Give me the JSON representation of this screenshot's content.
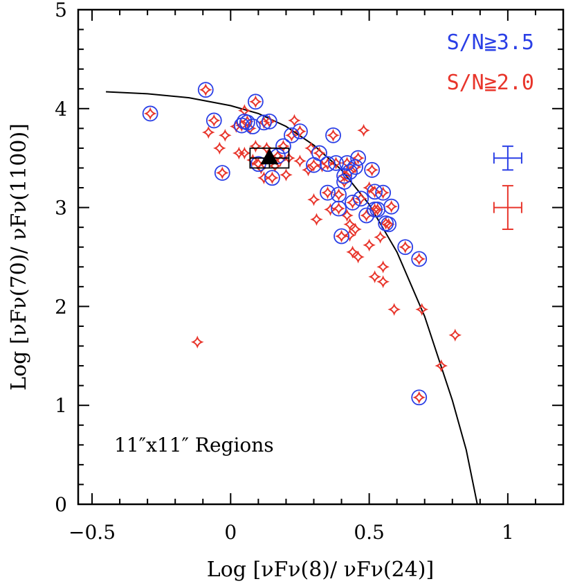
{
  "chart_data": {
    "type": "scatter",
    "title": "",
    "xlabel": "Log [νFν(8)/ νFν(24)]",
    "ylabel": "Log [νFν(70)/ νFν(1100)]",
    "xlim": [
      -0.55,
      1.2
    ],
    "ylim": [
      0,
      5
    ],
    "x_ticks": [
      -0.5,
      0,
      0.5,
      1
    ],
    "x_tick_labels": [
      "−0.5",
      "0",
      "0.5",
      "1"
    ],
    "y_ticks": [
      0,
      1,
      2,
      3,
      4,
      5
    ],
    "y_tick_labels": [
      "0",
      "1",
      "2",
      "3",
      "4",
      "5"
    ],
    "annotation": "11″x11″ Regions",
    "legend_position": "top-right",
    "series": [
      {
        "name": "S/N≧3.5",
        "color": "#2a3fe6",
        "marker": "open-circle",
        "points": [
          [
            -0.29,
            3.95
          ],
          [
            -0.09,
            4.19
          ],
          [
            -0.06,
            3.88
          ],
          [
            -0.03,
            3.35
          ],
          [
            0.04,
            3.83
          ],
          [
            0.05,
            3.87
          ],
          [
            0.06,
            3.86
          ],
          [
            0.08,
            3.82
          ],
          [
            0.09,
            4.07
          ],
          [
            0.1,
            3.44
          ],
          [
            0.12,
            3.86
          ],
          [
            0.14,
            3.87
          ],
          [
            0.15,
            3.3
          ],
          [
            0.17,
            3.52
          ],
          [
            0.19,
            3.62
          ],
          [
            0.22,
            3.73
          ],
          [
            0.25,
            3.77
          ],
          [
            0.3,
            3.43
          ],
          [
            0.32,
            3.55
          ],
          [
            0.35,
            3.15
          ],
          [
            0.35,
            3.44
          ],
          [
            0.37,
            3.73
          ],
          [
            0.38,
            3.45
          ],
          [
            0.39,
            3.13
          ],
          [
            0.39,
            2.99
          ],
          [
            0.4,
            2.71
          ],
          [
            0.41,
            3.32
          ],
          [
            0.41,
            3.26
          ],
          [
            0.42,
            3.45
          ],
          [
            0.43,
            3.36
          ],
          [
            0.44,
            3.05
          ],
          [
            0.45,
            3.41
          ],
          [
            0.46,
            3.5
          ],
          [
            0.47,
            3.09
          ],
          [
            0.49,
            2.92
          ],
          [
            0.51,
            3.38
          ],
          [
            0.52,
            3.16
          ],
          [
            0.52,
            2.98
          ],
          [
            0.53,
            2.98
          ],
          [
            0.55,
            3.15
          ],
          [
            0.56,
            2.84
          ],
          [
            0.57,
            2.83
          ],
          [
            0.58,
            3.01
          ],
          [
            0.63,
            2.6
          ],
          [
            0.68,
            2.48
          ],
          [
            0.68,
            1.08
          ]
        ]
      },
      {
        "name": "S/N≧2.0",
        "color": "#e8352b",
        "marker": "four-point-star",
        "points": [
          [
            -0.29,
            3.95
          ],
          [
            -0.12,
            1.64
          ],
          [
            -0.09,
            4.19
          ],
          [
            -0.08,
            3.76
          ],
          [
            -0.06,
            3.88
          ],
          [
            -0.04,
            3.6
          ],
          [
            -0.03,
            3.35
          ],
          [
            -0.02,
            3.73
          ],
          [
            0.02,
            3.82
          ],
          [
            0.03,
            3.55
          ],
          [
            0.04,
            3.83
          ],
          [
            0.05,
            3.98
          ],
          [
            0.05,
            3.55
          ],
          [
            0.06,
            3.87
          ],
          [
            0.07,
            3.8
          ],
          [
            0.08,
            3.48
          ],
          [
            0.09,
            4.07
          ],
          [
            0.09,
            3.62
          ],
          [
            0.1,
            3.44
          ],
          [
            0.11,
            3.4
          ],
          [
            0.12,
            3.86
          ],
          [
            0.12,
            3.3
          ],
          [
            0.13,
            3.6
          ],
          [
            0.14,
            3.87
          ],
          [
            0.15,
            3.3
          ],
          [
            0.16,
            3.42
          ],
          [
            0.17,
            3.52
          ],
          [
            0.18,
            3.48
          ],
          [
            0.19,
            3.62
          ],
          [
            0.2,
            3.33
          ],
          [
            0.21,
            3.5
          ],
          [
            0.22,
            3.73
          ],
          [
            0.23,
            3.88
          ],
          [
            0.25,
            3.77
          ],
          [
            0.25,
            3.47
          ],
          [
            0.28,
            3.38
          ],
          [
            0.29,
            3.6
          ],
          [
            0.3,
            3.43
          ],
          [
            0.3,
            3.08
          ],
          [
            0.31,
            2.88
          ],
          [
            0.32,
            3.55
          ],
          [
            0.33,
            3.42
          ],
          [
            0.35,
            3.15
          ],
          [
            0.35,
            3.44
          ],
          [
            0.36,
            2.98
          ],
          [
            0.37,
            3.73
          ],
          [
            0.38,
            3.45
          ],
          [
            0.39,
            3.13
          ],
          [
            0.39,
            2.99
          ],
          [
            0.4,
            2.71
          ],
          [
            0.41,
            3.32
          ],
          [
            0.41,
            3.26
          ],
          [
            0.42,
            3.45
          ],
          [
            0.42,
            2.92
          ],
          [
            0.43,
            3.36
          ],
          [
            0.43,
            2.83
          ],
          [
            0.43,
            2.72
          ],
          [
            0.44,
            3.05
          ],
          [
            0.44,
            2.55
          ],
          [
            0.45,
            3.41
          ],
          [
            0.45,
            2.78
          ],
          [
            0.46,
            3.5
          ],
          [
            0.46,
            2.5
          ],
          [
            0.47,
            3.09
          ],
          [
            0.48,
            3.78
          ],
          [
            0.49,
            2.92
          ],
          [
            0.5,
            3.2
          ],
          [
            0.5,
            2.62
          ],
          [
            0.51,
            3.38
          ],
          [
            0.52,
            3.16
          ],
          [
            0.52,
            2.3
          ],
          [
            0.52,
            2.98
          ],
          [
            0.53,
            2.98
          ],
          [
            0.54,
            2.7
          ],
          [
            0.55,
            3.15
          ],
          [
            0.55,
            2.4
          ],
          [
            0.55,
            2.25
          ],
          [
            0.56,
            2.84
          ],
          [
            0.57,
            2.83
          ],
          [
            0.58,
            3.01
          ],
          [
            0.59,
            1.97
          ],
          [
            0.63,
            2.6
          ],
          [
            0.68,
            2.48
          ],
          [
            0.68,
            1.08
          ],
          [
            0.69,
            1.97
          ],
          [
            0.76,
            1.4
          ],
          [
            0.81,
            1.71
          ]
        ]
      }
    ],
    "curve": {
      "color": "#000000",
      "style": "solid",
      "points": [
        [
          -0.45,
          4.17
        ],
        [
          -0.3,
          4.15
        ],
        [
          -0.15,
          4.11
        ],
        [
          0.0,
          4.03
        ],
        [
          0.1,
          3.95
        ],
        [
          0.2,
          3.82
        ],
        [
          0.3,
          3.63
        ],
        [
          0.4,
          3.38
        ],
        [
          0.5,
          3.03
        ],
        [
          0.6,
          2.55
        ],
        [
          0.7,
          1.9
        ],
        [
          0.8,
          1.05
        ],
        [
          0.85,
          0.55
        ],
        [
          0.89,
          0.0
        ]
      ]
    },
    "mean_point": {
      "marker": "filled-triangle",
      "x": 0.14,
      "y": 3.5,
      "x_err": 0.07,
      "y_err": 0.1
    },
    "error_bars": [
      {
        "series": "S/N≧3.5",
        "color": "#2a3fe6",
        "x": 1.0,
        "y": 3.5,
        "x_err": 0.05,
        "y_err": 0.12
      },
      {
        "series": "S/N≧2.0",
        "color": "#e8352b",
        "x": 1.0,
        "y": 3.0,
        "x_err": 0.05,
        "y_err": 0.22
      }
    ]
  }
}
